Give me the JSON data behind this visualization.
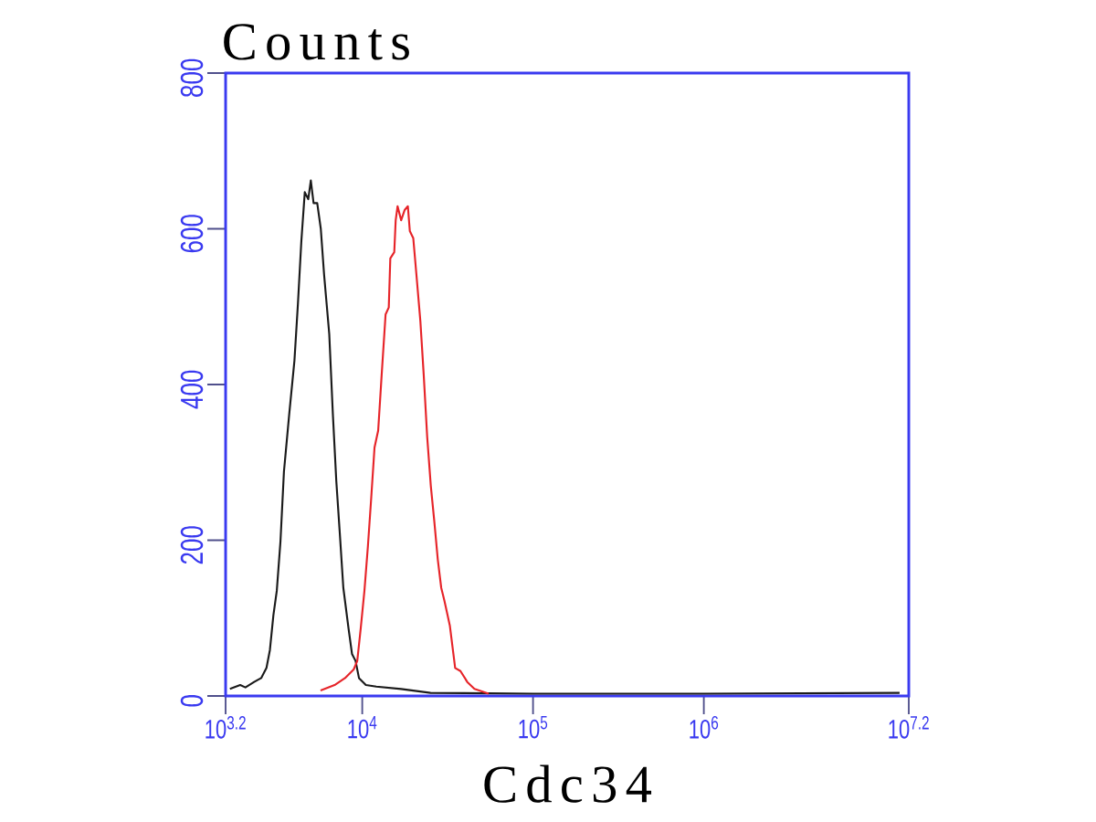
{
  "chart_data": {
    "type": "line",
    "xlabel": "Cdc34",
    "ylabel": "Counts",
    "log": "x",
    "xlim": [
      1584.89,
      15848932
    ],
    "ylim": [
      0,
      800
    ],
    "xticks": [
      {
        "value": 1584.89,
        "label": "10$^{3.2}$"
      },
      {
        "value": 10000,
        "label": "10$^{4}$"
      },
      {
        "value": 100000,
        "label": "10$^{5}$"
      },
      {
        "value": 1000000,
        "label": "10$^{6}$"
      },
      {
        "value": 15848932,
        "label": "10$^{7.2}$"
      }
    ],
    "yticks": [
      0,
      200,
      400,
      600,
      800
    ],
    "series": [
      {
        "color": "#1a1a1a",
        "x": [
          1680,
          1930,
          2070,
          2330,
          2560,
          2750,
          2880,
          3020,
          3160,
          3320,
          3480,
          3730,
          4010,
          4200,
          4400,
          4610,
          4830,
          5000,
          5190,
          5450,
          5720,
          5980,
          6410,
          6730,
          7050,
          7380,
          7750,
          8320,
          8710,
          9140,
          9570,
          10500,
          12100,
          16900,
          25100,
          100000,
          1000000,
          14000000
        ],
        "values": [
          9,
          14,
          11,
          18,
          23,
          36,
          59,
          104,
          135,
          198,
          288,
          360,
          431,
          503,
          584,
          647,
          638,
          662,
          633,
          633,
          600,
          541,
          465,
          362,
          276,
          211,
          139,
          86,
          54,
          45,
          23,
          14,
          12,
          9,
          4,
          3,
          3,
          4
        ]
      },
      {
        "color": "#e62429",
        "x": [
          5700,
          6890,
          7930,
          8910,
          9350,
          9790,
          10300,
          10800,
          11300,
          11800,
          12400,
          13000,
          13700,
          14300,
          14600,
          15400,
          15700,
          16100,
          16900,
          17700,
          18500,
          19000,
          19900,
          20800,
          21900,
          22900,
          24000,
          25200,
          26400,
          27700,
          29000,
          30300,
          32600,
          35000,
          37600,
          41200,
          45400,
          55000
        ],
        "values": [
          7,
          14,
          23,
          34,
          45,
          86,
          135,
          193,
          256,
          319,
          341,
          413,
          490,
          499,
          562,
          570,
          611,
          629,
          611,
          624,
          629,
          597,
          588,
          539,
          481,
          413,
          333,
          270,
          225,
          175,
          139,
          122,
          90,
          36,
          32,
          18,
          9,
          3
        ]
      }
    ]
  }
}
